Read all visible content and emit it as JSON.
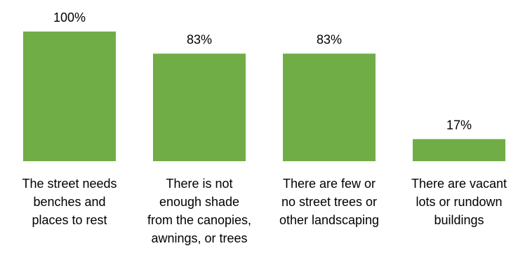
{
  "chart_data": {
    "type": "bar",
    "categories": [
      [
        "The street needs",
        "benches and",
        "places to rest"
      ],
      [
        "There is not",
        "enough shade",
        "from the canopies,",
        "awnings, or trees"
      ],
      [
        "There are few or",
        "no street trees or",
        "other landscaping"
      ],
      [
        "There are vacant",
        "lots or rundown",
        "buildings"
      ]
    ],
    "values": [
      100,
      83,
      83,
      17
    ],
    "value_labels": [
      "100%",
      "83%",
      "83%",
      "17%"
    ],
    "ylim": [
      0,
      100
    ],
    "grid": false,
    "bar_color": "#70ad47"
  }
}
